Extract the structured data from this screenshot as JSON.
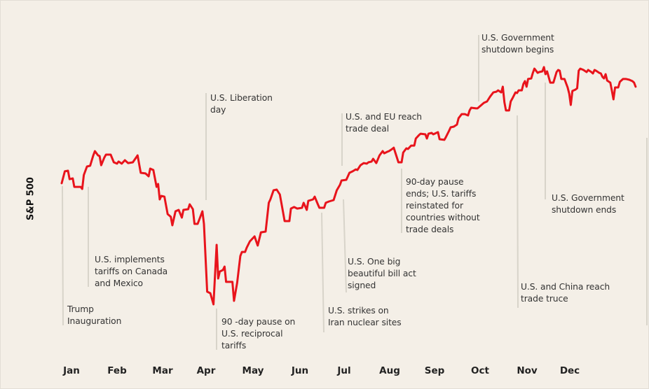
{
  "chart_data": {
    "type": "line",
    "ylabel": "S&P 500",
    "xlabel": "",
    "x_tick_labels": [
      "Jan",
      "Feb",
      "Mar",
      "Apr",
      "May",
      "Jun",
      "Jul",
      "Aug",
      "Sep",
      "Oct",
      "Nov",
      "Dec"
    ],
    "grid": false,
    "colors": {
      "line": "#e8141c",
      "leader": "#d8d4ca",
      "background": "#f4efe7"
    },
    "series": [
      {
        "points": [
          [
            "2025-01-02",
            5959
          ],
          [
            "2025-01-04",
            6055
          ],
          [
            "2025-01-06",
            6060
          ],
          [
            "2025-01-07",
            5992
          ],
          [
            "2025-01-09",
            5998
          ],
          [
            "2025-01-10",
            5930
          ],
          [
            "2025-01-14",
            5930
          ],
          [
            "2025-01-15",
            5913
          ],
          [
            "2025-01-16",
            6026
          ],
          [
            "2025-01-18",
            6094
          ],
          [
            "2025-01-20",
            6100
          ],
          [
            "2025-01-22",
            6184
          ],
          [
            "2025-01-23",
            6218
          ],
          [
            "2025-01-25",
            6184
          ],
          [
            "2025-01-26",
            6179
          ],
          [
            "2025-01-27",
            6105
          ],
          [
            "2025-01-29",
            6167
          ],
          [
            "2025-01-30",
            6190
          ],
          [
            "2025-02-02",
            6190
          ],
          [
            "2025-02-04",
            6128
          ],
          [
            "2025-02-06",
            6117
          ],
          [
            "2025-02-07",
            6134
          ],
          [
            "2025-02-09",
            6117
          ],
          [
            "2025-02-11",
            6145
          ],
          [
            "2025-02-13",
            6122
          ],
          [
            "2025-02-16",
            6128
          ],
          [
            "2025-02-19",
            6184
          ],
          [
            "2025-02-21",
            6043
          ],
          [
            "2025-02-24",
            6038
          ],
          [
            "2025-02-26",
            6015
          ],
          [
            "2025-02-27",
            6077
          ],
          [
            "2025-03-01",
            6066
          ],
          [
            "2025-03-03",
            5930
          ],
          [
            "2025-03-04",
            5953
          ],
          [
            "2025-03-05",
            5829
          ],
          [
            "2025-03-06",
            5857
          ],
          [
            "2025-03-08",
            5851
          ],
          [
            "2025-03-10",
            5710
          ],
          [
            "2025-03-12",
            5688
          ],
          [
            "2025-03-13",
            5620
          ],
          [
            "2025-03-15",
            5733
          ],
          [
            "2025-03-17",
            5744
          ],
          [
            "2025-03-19",
            5682
          ],
          [
            "2025-03-20",
            5744
          ],
          [
            "2025-03-23",
            5750
          ],
          [
            "2025-03-24",
            5789
          ],
          [
            "2025-03-26",
            5750
          ],
          [
            "2025-03-27",
            5631
          ],
          [
            "2025-03-29",
            5631
          ],
          [
            "2025-04-01",
            5733
          ],
          [
            "2025-04-02",
            5631
          ],
          [
            "2025-04-04",
            5084
          ],
          [
            "2025-04-06",
            5072
          ],
          [
            "2025-04-08",
            4982
          ],
          [
            "2025-04-10",
            5462
          ],
          [
            "2025-04-11",
            5191
          ],
          [
            "2025-04-12",
            5247
          ],
          [
            "2025-04-14",
            5259
          ],
          [
            "2025-04-15",
            5287
          ],
          [
            "2025-04-16",
            5163
          ],
          [
            "2025-04-20",
            5163
          ],
          [
            "2025-04-21",
            5010
          ],
          [
            "2025-04-23",
            5157
          ],
          [
            "2025-04-25",
            5372
          ],
          [
            "2025-04-26",
            5405
          ],
          [
            "2025-04-28",
            5405
          ],
          [
            "2025-04-29",
            5439
          ],
          [
            "2025-05-01",
            5490
          ],
          [
            "2025-05-04",
            5530
          ],
          [
            "2025-05-06",
            5456
          ],
          [
            "2025-05-08",
            5563
          ],
          [
            "2025-05-11",
            5569
          ],
          [
            "2025-05-13",
            5801
          ],
          [
            "2025-05-14",
            5829
          ],
          [
            "2025-05-16",
            5902
          ],
          [
            "2025-05-18",
            5908
          ],
          [
            "2025-05-20",
            5868
          ],
          [
            "2025-05-22",
            5727
          ],
          [
            "2025-05-23",
            5654
          ],
          [
            "2025-05-26",
            5654
          ],
          [
            "2025-05-27",
            5755
          ],
          [
            "2025-05-29",
            5767
          ],
          [
            "2025-05-31",
            5755
          ],
          [
            "2025-06-03",
            5761
          ],
          [
            "2025-06-04",
            5801
          ],
          [
            "2025-06-06",
            5744
          ],
          [
            "2025-06-07",
            5817
          ],
          [
            "2025-06-10",
            5829
          ],
          [
            "2025-06-11",
            5851
          ],
          [
            "2025-06-13",
            5789
          ],
          [
            "2025-06-14",
            5761
          ],
          [
            "2025-06-17",
            5761
          ],
          [
            "2025-06-18",
            5801
          ],
          [
            "2025-06-20",
            5812
          ],
          [
            "2025-06-23",
            5823
          ],
          [
            "2025-06-25",
            5902
          ],
          [
            "2025-06-27",
            5947
          ],
          [
            "2025-06-28",
            5981
          ],
          [
            "2025-07-01",
            5987
          ],
          [
            "2025-07-03",
            6043
          ],
          [
            "2025-07-05",
            6055
          ],
          [
            "2025-07-07",
            6071
          ],
          [
            "2025-07-08",
            6066
          ],
          [
            "2025-07-10",
            6105
          ],
          [
            "2025-07-12",
            6122
          ],
          [
            "2025-07-14",
            6117
          ],
          [
            "2025-07-15",
            6128
          ],
          [
            "2025-07-17",
            6134
          ],
          [
            "2025-07-18",
            6156
          ],
          [
            "2025-07-20",
            6122
          ],
          [
            "2025-07-22",
            6184
          ],
          [
            "2025-07-24",
            6218
          ],
          [
            "2025-07-25",
            6201
          ],
          [
            "2025-07-27",
            6213
          ],
          [
            "2025-07-28",
            6218
          ],
          [
            "2025-07-30",
            6235
          ],
          [
            "2025-07-31",
            6246
          ],
          [
            "2025-08-01",
            6207
          ],
          [
            "2025-08-03",
            6128
          ],
          [
            "2025-08-05",
            6128
          ],
          [
            "2025-08-06",
            6207
          ],
          [
            "2025-08-08",
            6241
          ],
          [
            "2025-08-09",
            6235
          ],
          [
            "2025-08-11",
            6263
          ],
          [
            "2025-08-13",
            6263
          ],
          [
            "2025-08-14",
            6320
          ],
          [
            "2025-08-16",
            6348
          ],
          [
            "2025-08-17",
            6359
          ],
          [
            "2025-08-20",
            6354
          ],
          [
            "2025-08-21",
            6320
          ],
          [
            "2025-08-22",
            6359
          ],
          [
            "2025-08-24",
            6365
          ],
          [
            "2025-08-25",
            6354
          ],
          [
            "2025-08-28",
            6371
          ],
          [
            "2025-08-29",
            6314
          ],
          [
            "2025-09-01",
            6309
          ],
          [
            "2025-09-02",
            6331
          ],
          [
            "2025-09-04",
            6382
          ],
          [
            "2025-09-05",
            6410
          ],
          [
            "2025-09-07",
            6416
          ],
          [
            "2025-09-09",
            6433
          ],
          [
            "2025-09-10",
            6484
          ],
          [
            "2025-09-12",
            6517
          ],
          [
            "2025-09-14",
            6517
          ],
          [
            "2025-09-16",
            6506
          ],
          [
            "2025-09-17",
            6546
          ],
          [
            "2025-09-18",
            6568
          ],
          [
            "2025-09-21",
            6563
          ],
          [
            "2025-09-22",
            6563
          ],
          [
            "2025-09-24",
            6585
          ],
          [
            "2025-09-26",
            6608
          ],
          [
            "2025-09-28",
            6619
          ],
          [
            "2025-09-30",
            6659
          ],
          [
            "2025-10-02",
            6692
          ],
          [
            "2025-10-04",
            6698
          ],
          [
            "2025-10-05",
            6709
          ],
          [
            "2025-10-07",
            6692
          ],
          [
            "2025-10-08",
            6738
          ],
          [
            "2025-10-09",
            6613
          ],
          [
            "2025-10-10",
            6546
          ],
          [
            "2025-10-12",
            6546
          ],
          [
            "2025-10-13",
            6619
          ],
          [
            "2025-10-14",
            6642
          ],
          [
            "2025-10-16",
            6692
          ],
          [
            "2025-10-17",
            6687
          ],
          [
            "2025-10-18",
            6709
          ],
          [
            "2025-10-20",
            6709
          ],
          [
            "2025-10-21",
            6760
          ],
          [
            "2025-10-22",
            6783
          ],
          [
            "2025-10-23",
            6738
          ],
          [
            "2025-10-24",
            6800
          ],
          [
            "2025-10-26",
            6805
          ],
          [
            "2025-10-27",
            6850
          ],
          [
            "2025-10-28",
            6884
          ],
          [
            "2025-10-30",
            6850
          ],
          [
            "2025-10-31",
            6856
          ],
          [
            "2025-11-02",
            6862
          ],
          [
            "2025-11-03",
            6896
          ],
          [
            "2025-11-04",
            6839
          ],
          [
            "2025-11-05",
            6862
          ],
          [
            "2025-11-06",
            6817
          ],
          [
            "2025-11-07",
            6771
          ],
          [
            "2025-11-09",
            6771
          ],
          [
            "2025-11-11",
            6856
          ],
          [
            "2025-11-12",
            6873
          ],
          [
            "2025-11-13",
            6867
          ],
          [
            "2025-11-14",
            6800
          ],
          [
            "2025-11-16",
            6800
          ],
          [
            "2025-11-18",
            6732
          ],
          [
            "2025-11-19",
            6681
          ],
          [
            "2025-11-20",
            6591
          ],
          [
            "2025-11-21",
            6704
          ],
          [
            "2025-11-23",
            6715
          ],
          [
            "2025-11-24",
            6726
          ],
          [
            "2025-11-25",
            6867
          ],
          [
            "2025-11-26",
            6884
          ],
          [
            "2025-11-28",
            6873
          ],
          [
            "2025-11-30",
            6856
          ],
          [
            "2025-12-01",
            6873
          ],
          [
            "2025-12-03",
            6856
          ],
          [
            "2025-12-04",
            6845
          ],
          [
            "2025-12-05",
            6873
          ],
          [
            "2025-12-06",
            6867
          ],
          [
            "2025-12-08",
            6850
          ],
          [
            "2025-12-09",
            6845
          ],
          [
            "2025-12-10",
            6817
          ],
          [
            "2025-12-11",
            6805
          ],
          [
            "2025-12-12",
            6839
          ],
          [
            "2025-12-13",
            6788
          ],
          [
            "2025-12-15",
            6771
          ],
          [
            "2025-12-16",
            6704
          ],
          [
            "2025-12-17",
            6636
          ],
          [
            "2025-12-18",
            6732
          ],
          [
            "2025-12-20",
            6732
          ],
          [
            "2025-12-21",
            6777
          ],
          [
            "2025-12-23",
            6800
          ],
          [
            "2025-12-25",
            6800
          ],
          [
            "2025-12-27",
            6794
          ],
          [
            "2025-12-29",
            6783
          ],
          [
            "2025-12-30",
            6771
          ],
          [
            "2025-12-31",
            6738
          ]
        ]
      }
    ],
    "annotations": [
      {
        "id": "trump-inauguration",
        "lines": [
          "Trump",
          "Inauguration"
        ]
      },
      {
        "id": "tariffs-canada-mexico",
        "lines": [
          "U.S. implements",
          "tariffs on Canada",
          "and Mexico"
        ]
      },
      {
        "id": "liberation-day",
        "lines": [
          "U.S. Liberation",
          "day"
        ]
      },
      {
        "id": "reciprocal-pause",
        "lines": [
          "90 -day pause on",
          "U.S. reciprocal",
          "tariffs"
        ]
      },
      {
        "id": "iran-strikes",
        "lines": [
          "U.S. strikes on",
          "Iran nuclear sites"
        ]
      },
      {
        "id": "eu-trade-deal",
        "lines": [
          "U.S. and EU reach",
          "trade deal"
        ]
      },
      {
        "id": "big-beautiful-bill",
        "lines": [
          "U.S. One big",
          "beautiful bill act",
          "signed"
        ]
      },
      {
        "id": "pause-ends",
        "lines": [
          "90-day pause",
          "ends; U.S. tariffs",
          "reinstated for",
          "countries without",
          "trade deals"
        ]
      },
      {
        "id": "shutdown-begins",
        "lines": [
          "U.S. Government",
          "shutdown begins"
        ]
      },
      {
        "id": "china-truce",
        "lines": [
          "U.S. and China reach",
          "trade truce"
        ]
      },
      {
        "id": "shutdown-ends",
        "lines": [
          "U.S. Government",
          "shutdown ends"
        ]
      }
    ]
  }
}
